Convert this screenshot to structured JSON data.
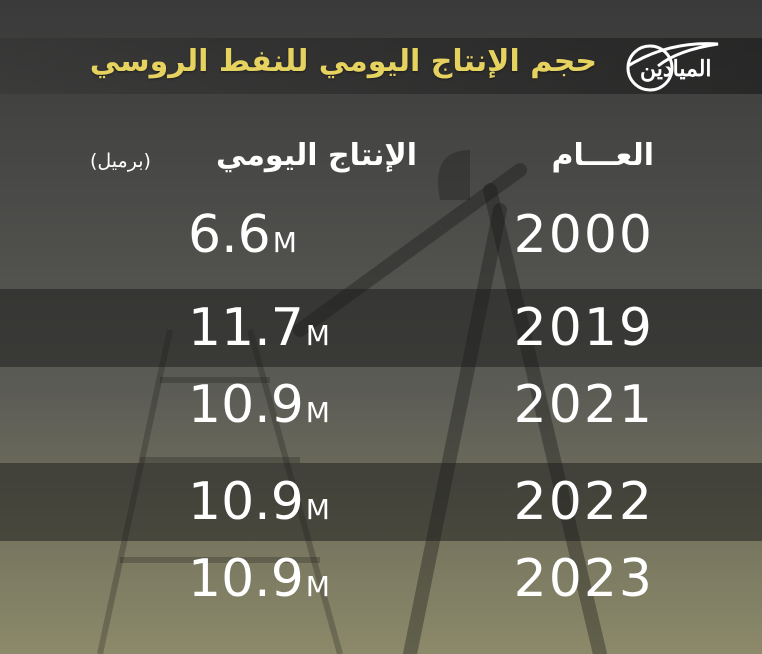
{
  "header": {
    "title": "حجم الإنتاج اليومي للنفط الروسي",
    "logo_text": "الميادين"
  },
  "table": {
    "col_year": "العـــام",
    "col_production": "الإنتاج اليومي",
    "col_unit": "(برميل)",
    "unit_suffix": "M"
  },
  "chart_data": {
    "type": "table",
    "title": "حجم الإنتاج اليومي للنفط الروسي",
    "columns": [
      "العـــام",
      "الإنتاج اليومي (برميل)"
    ],
    "rows": [
      {
        "year": "2000",
        "value": "6.6"
      },
      {
        "year": "2019",
        "value": "11.7"
      },
      {
        "year": "2021",
        "value": "10.9"
      },
      {
        "year": "2022",
        "value": "10.9"
      },
      {
        "year": "2023",
        "value": "10.9"
      }
    ]
  },
  "colors": {
    "title": "#e6d25f",
    "text": "#ffffff"
  }
}
